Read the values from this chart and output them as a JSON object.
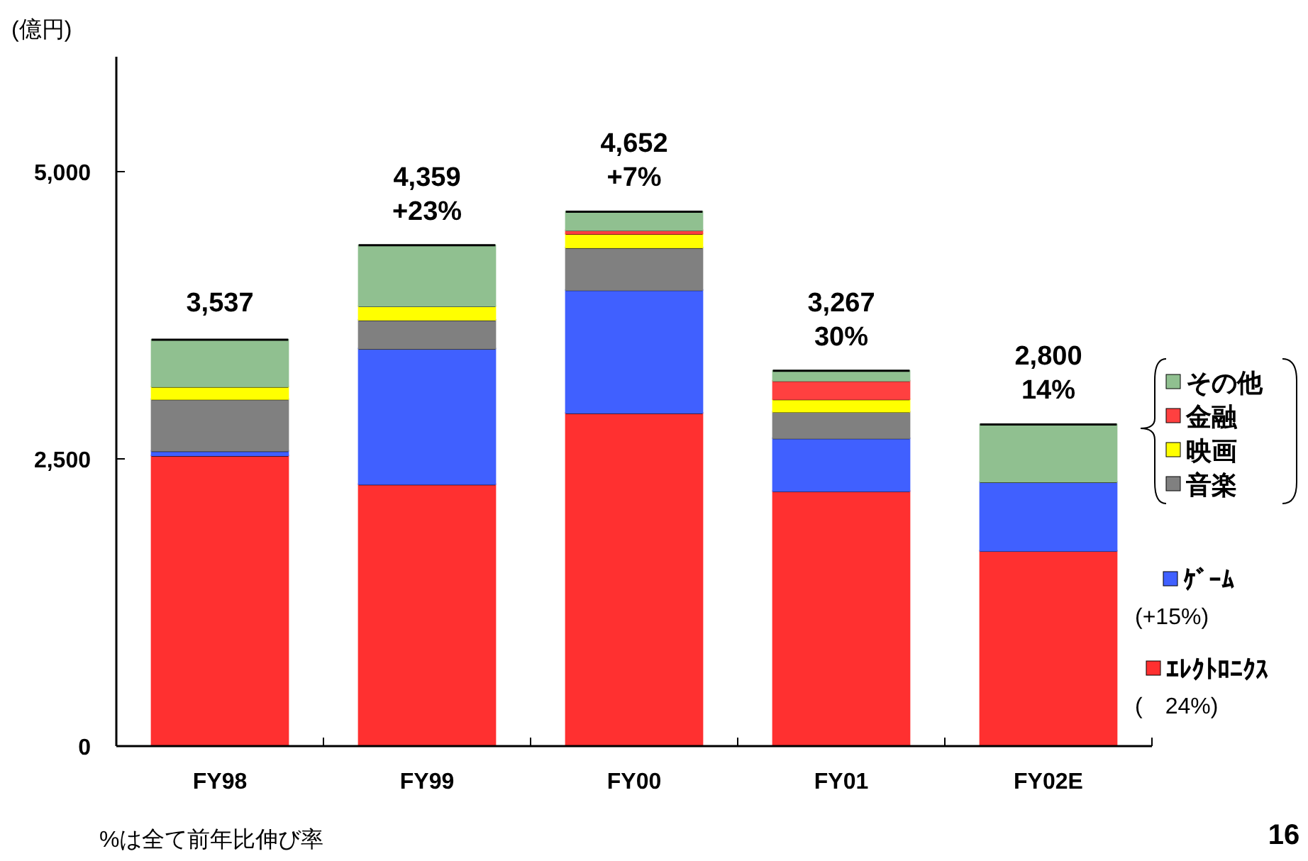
{
  "chart_data": {
    "type": "bar",
    "stacked": true,
    "ylabel": "(億円)",
    "categories": [
      "FY98",
      "FY99",
      "FY00",
      "FY01",
      "FY02E"
    ],
    "ylim": [
      0,
      6000
    ],
    "yticks": [
      0,
      {
        "value": 2500,
        "label": "2,500"
      },
      {
        "value": 5000,
        "label": "5,000"
      }
    ],
    "series": [
      {
        "name": "ｴﾚｸﾄﾛﾆｸｽ",
        "color": "#ff3030",
        "values": [
          2530,
          2280,
          2900,
          2220,
          1700
        ]
      },
      {
        "name": "ｹﾞｰﾑ",
        "color": "#4060ff",
        "values": [
          40,
          1180,
          1070,
          460,
          600
        ]
      },
      {
        "name": "音楽",
        "color": "#808080",
        "values": [
          450,
          250,
          370,
          230,
          0
        ]
      },
      {
        "name": "映画",
        "color": "#ffff00",
        "values": [
          110,
          120,
          120,
          110,
          0
        ]
      },
      {
        "name": "金融",
        "color": "#ff4040",
        "values": [
          0,
          0,
          30,
          160,
          0
        ]
      },
      {
        "name": "その他",
        "color": "#90c090",
        "values": [
          407,
          529,
          162,
          87,
          500
        ]
      }
    ],
    "totals": [
      "3,537",
      "4,359",
      "4,652",
      "3,267",
      "2,800"
    ],
    "legend": "right",
    "annotations": [
      {
        "text": "+23%",
        "x": "FY99",
        "y": 4359
      },
      {
        "text": "+7%",
        "x": "FY00",
        "y": 4652
      },
      {
        "text": "30%",
        "x": "FY01",
        "y": 3267
      },
      {
        "text": "14%",
        "x": "FY02E",
        "y": 2800
      },
      "(+15%)",
      "(　24%)",
      "%は全て前年比伸び率",
      "16"
    ]
  }
}
